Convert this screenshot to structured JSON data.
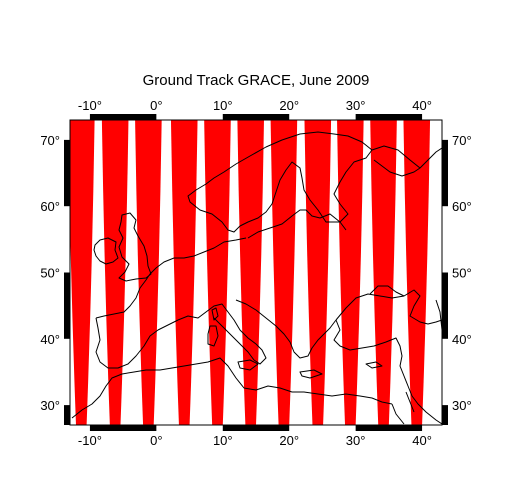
{
  "title": "Ground Track GRACE, June 2009",
  "map": {
    "lon_range": [
      -13,
      43
    ],
    "lat_range": [
      27,
      73
    ],
    "lon_ticks": [
      -10,
      0,
      10,
      20,
      30,
      40
    ],
    "lat_ticks": [
      30,
      40,
      50,
      60,
      70
    ],
    "lon_tick_labels": [
      "-10°",
      "0°",
      "10°",
      "20°",
      "30°",
      "40°"
    ],
    "lat_tick_labels": [
      "30°",
      "40°",
      "50°",
      "60°",
      "70°"
    ],
    "frame_style": "alternating black-white",
    "frame_interval_deg": 10,
    "coastlines": "Europe, North Africa, Middle East"
  },
  "ground_track": {
    "satellite": "GRACE",
    "period": "June 2009",
    "color": "#ff0000",
    "band_centers_lon": [
      -11.3,
      -6.2,
      -1.2,
      4.2,
      9.2,
      14.2,
      19.2,
      24.3,
      29.2,
      34.2,
      39.2
    ],
    "band_half_width_deg_at_lat_min": 0.8,
    "band_half_width_deg_at_lat_max": 2.0
  },
  "colors": {
    "track": "#ff0000",
    "coast": "#000000",
    "frame": "#000000"
  }
}
